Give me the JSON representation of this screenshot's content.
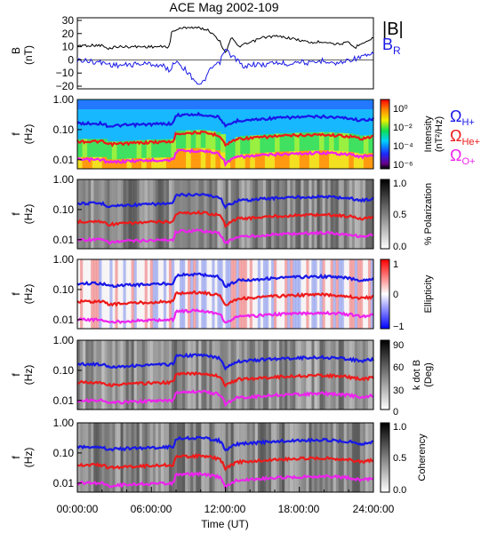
{
  "title": "ACE Mag 2002-109",
  "colors": {
    "total": "#000000",
    "radial": "#1a1ae6",
    "h_plus": "#1818e8",
    "he_plus": "#ee1a1a",
    "o_plus": "#ee22ee"
  },
  "legend": {
    "total_field": "|B|",
    "radial_base": "B",
    "radial_sub": "R",
    "omega": "Ω",
    "h_sub": "H+",
    "he_sub": "He+",
    "o_sub": "O+"
  },
  "x_axis": {
    "label": "Time (UT)",
    "ticks": [
      "00:00:00",
      "06:00:00",
      "12:00:00",
      "18:00:00",
      "24:00:00"
    ]
  },
  "panels": [
    {
      "ylabel_top": "B",
      "ylabel_bottom": "(nT)",
      "yticks": [
        "30",
        "20",
        "10",
        "0",
        "−10",
        "−20"
      ]
    },
    {
      "ylabel_top": "f",
      "ylabel_bottom": "(Hz)",
      "yticks": [
        "1.00",
        "0.10",
        "0.01"
      ],
      "cb_label_1": "Intensity",
      "cb_label_2": "(nT²/Hz)",
      "cb_ticks": [
        "10⁰",
        "10⁻²",
        "10⁻⁴",
        "10⁻⁶"
      ]
    },
    {
      "ylabel_top": "f",
      "ylabel_bottom": "(Hz)",
      "yticks": [
        "1.00",
        "0.10",
        "0.01"
      ],
      "cb_label_1": "% Polarization",
      "cb_ticks": [
        "1.0",
        "0.5",
        "0.0"
      ]
    },
    {
      "ylabel_top": "f",
      "ylabel_bottom": "(Hz)",
      "yticks": [
        "1.00",
        "0.10",
        "0.01"
      ],
      "cb_label_1": "Ellipticity",
      "cb_ticks": [
        "1",
        "0",
        "−1"
      ]
    },
    {
      "ylabel_top": "f",
      "ylabel_bottom": "(Hz)",
      "yticks": [
        "1.00",
        "0.10",
        "0.01"
      ],
      "cb_label_1": "k dot B",
      "cb_label_2": "(Deg)",
      "cb_ticks": [
        "90",
        "60",
        "30",
        "0"
      ]
    },
    {
      "ylabel_top": "f",
      "ylabel_bottom": "(Hz)",
      "yticks": [
        "1.00",
        "0.10",
        "0.01"
      ],
      "cb_label_1": "Coherency",
      "cb_ticks": [
        "1.0",
        "0.5",
        "0.0"
      ]
    }
  ],
  "chart_data": [
    {
      "type": "line",
      "x_unit": "hours UT",
      "xlim": [
        0,
        24
      ],
      "ylim": [
        -22,
        32
      ],
      "series": [
        {
          "name": "|B|",
          "x": [
            0,
            1,
            2,
            2.5,
            3,
            4,
            5,
            6,
            7,
            7.5,
            7.6,
            8,
            9,
            10,
            10.5,
            11,
            11.5,
            12,
            12.5,
            13,
            14,
            15,
            16,
            17,
            18,
            19,
            20,
            21,
            22,
            22.5,
            23,
            23.5,
            24
          ],
          "values": [
            11,
            11,
            11,
            8,
            10,
            10,
            10,
            10,
            10,
            10,
            21,
            23,
            25,
            24,
            23,
            20,
            15,
            5,
            18,
            10,
            13,
            17,
            18,
            17,
            15,
            13,
            14,
            12,
            13,
            9,
            13,
            14,
            17
          ]
        },
        {
          "name": "B_R",
          "x": [
            0,
            1,
            2,
            3,
            4,
            5,
            6,
            7,
            7.5,
            8,
            9,
            9.5,
            10,
            10.5,
            11,
            11.5,
            12,
            12.5,
            13,
            13.5,
            14,
            15,
            16,
            17,
            18,
            19,
            20,
            21,
            22,
            23,
            24
          ],
          "values": [
            0,
            -1,
            -2,
            -4,
            -4,
            -3,
            -3,
            -5,
            -8,
            0,
            -10,
            -15,
            -20,
            -12,
            -5,
            -3,
            8,
            3,
            0,
            -7,
            -3,
            -4,
            -2,
            -3,
            -1,
            -3,
            0,
            -3,
            0,
            2,
            4
          ]
        }
      ]
    },
    {
      "type": "heatmap",
      "name": "Intensity spectrogram",
      "x_unit": "hours UT",
      "xlim": [
        0,
        24
      ],
      "y_unit": "Hz",
      "ylim": [
        0.005,
        1.0
      ],
      "y_scale": "log",
      "colorbar_range": [
        1e-06,
        1
      ],
      "colorbar_scale": "log",
      "series": [
        {
          "name": "H+ gyrofrequency",
          "x": [
            0,
            2,
            2.5,
            4,
            6,
            7.8,
            8,
            10,
            11.5,
            12,
            13,
            14,
            16,
            18,
            20,
            22,
            23,
            24
          ],
          "values": [
            0.16,
            0.16,
            0.13,
            0.14,
            0.15,
            0.16,
            0.3,
            0.32,
            0.26,
            0.12,
            0.2,
            0.21,
            0.24,
            0.26,
            0.27,
            0.24,
            0.2,
            0.23
          ]
        },
        {
          "name": "He+ gyrofrequency",
          "x": [
            0,
            2,
            2.5,
            4,
            6,
            7.8,
            8,
            10,
            11.5,
            12,
            13,
            14,
            16,
            18,
            20,
            22,
            23,
            24
          ],
          "values": [
            0.04,
            0.04,
            0.032,
            0.035,
            0.038,
            0.04,
            0.075,
            0.08,
            0.065,
            0.03,
            0.05,
            0.052,
            0.06,
            0.065,
            0.068,
            0.06,
            0.05,
            0.058
          ]
        },
        {
          "name": "O+ gyrofrequency",
          "x": [
            0,
            2,
            2.5,
            4,
            6,
            7.8,
            8,
            10,
            11.5,
            12,
            13,
            14,
            16,
            18,
            20,
            22,
            23,
            24
          ],
          "values": [
            0.01,
            0.01,
            0.008,
            0.009,
            0.0095,
            0.01,
            0.019,
            0.02,
            0.016,
            0.0075,
            0.0125,
            0.013,
            0.015,
            0.016,
            0.017,
            0.015,
            0.0125,
            0.0145
          ]
        }
      ]
    },
    {
      "type": "heatmap",
      "name": "% Polarization",
      "xlim": [
        0,
        24
      ],
      "ylim": [
        0.005,
        1.0
      ],
      "y_scale": "log",
      "colorbar_range": [
        0,
        1
      ]
    },
    {
      "type": "heatmap",
      "name": "Ellipticity",
      "xlim": [
        0,
        24
      ],
      "ylim": [
        0.005,
        1.0
      ],
      "y_scale": "log",
      "colorbar_range": [
        -1,
        1
      ]
    },
    {
      "type": "heatmap",
      "name": "k dot B",
      "xlim": [
        0,
        24
      ],
      "ylim": [
        0.005,
        1.0
      ],
      "y_scale": "log",
      "colorbar_range": [
        0,
        90
      ]
    },
    {
      "type": "heatmap",
      "name": "Coherency",
      "xlim": [
        0,
        24
      ],
      "ylim": [
        0.005,
        1.0
      ],
      "y_scale": "log",
      "colorbar_range": [
        0,
        1
      ]
    }
  ]
}
